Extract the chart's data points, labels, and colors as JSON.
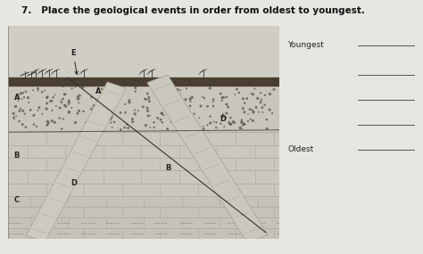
{
  "title": "7.   Place the geological events in order from oldest to youngest.",
  "title_fontsize": 7.5,
  "title_fontweight": "bold",
  "page_bg": "#e8e6e2",
  "diagram_bg": "#d8d5ce",
  "youngest_label": "Youngest",
  "oldest_label": "Oldest",
  "layer_A_color": "#c8c5bc",
  "layer_B_color": "#cac7be",
  "layer_C_color": "#b8b5ac",
  "soil_color": "#4a3e30",
  "dike_color": "#ccc8be",
  "dike_edge": "#aaa89e",
  "dot_color": "#555550",
  "brick_edge": "#aaa89e",
  "fault_line_color": "#333333"
}
